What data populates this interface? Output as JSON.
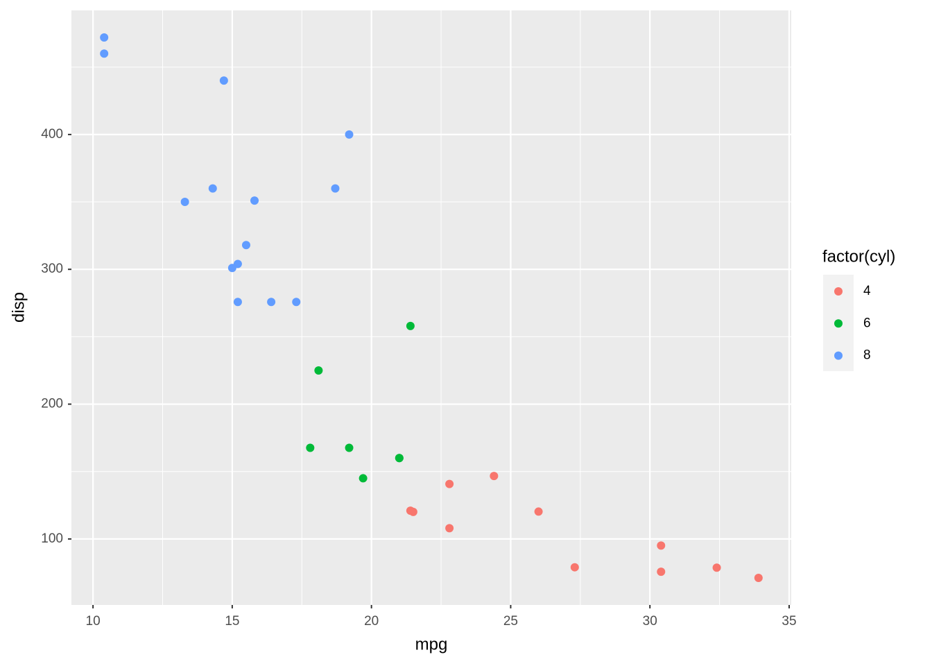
{
  "chart_data": {
    "type": "scatter",
    "x_label": "mpg",
    "y_label": "disp",
    "legend_title": "factor(cyl)",
    "legend_position": "right",
    "series": [
      {
        "name": "4",
        "color": "#F8766D",
        "x": [
          22.8,
          24.4,
          22.8,
          32.4,
          30.4,
          33.9,
          21.5,
          27.3,
          26.0,
          30.4,
          21.4
        ],
        "values": [
          108,
          146.7,
          140.8,
          78.7,
          75.7,
          71.1,
          120.1,
          79,
          120.3,
          95.1,
          121
        ]
      },
      {
        "name": "6",
        "color": "#00BA38",
        "x": [
          21.0,
          21.0,
          21.4,
          18.1,
          19.2,
          17.8,
          19.7
        ],
        "values": [
          160,
          160,
          258,
          225,
          167.6,
          167.6,
          145
        ]
      },
      {
        "name": "8",
        "color": "#619CFF",
        "x": [
          18.7,
          14.3,
          16.4,
          17.3,
          15.2,
          10.4,
          10.4,
          14.7,
          15.5,
          15.2,
          13.3,
          19.2,
          15.8,
          15.0
        ],
        "values": [
          360,
          360,
          275.8,
          275.8,
          275.8,
          472,
          460,
          440,
          318,
          304,
          350,
          400,
          351,
          301
        ]
      }
    ],
    "xlim": [
      9.225,
      35.075
    ],
    "ylim": [
      51.055,
      492.045
    ],
    "xticks": [
      10,
      15,
      20,
      25,
      30,
      35
    ],
    "yticks": [
      100,
      200,
      300,
      400
    ],
    "x_minor_ticks": [
      12.5,
      17.5,
      22.5,
      27.5,
      32.5
    ],
    "y_minor_ticks": [
      150,
      250,
      350,
      450
    ],
    "grid": true
  }
}
